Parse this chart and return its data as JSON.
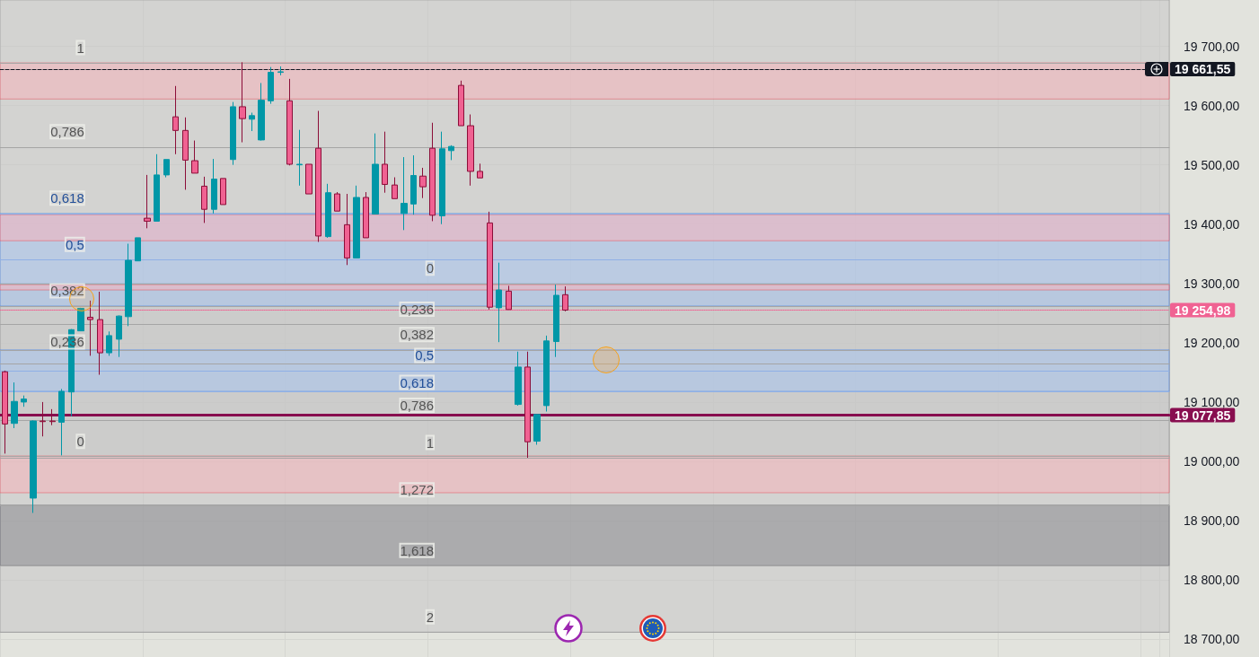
{
  "chart_data": {
    "type": "candlestick",
    "categories": [
      null,
      null,
      null,
      null,
      null,
      null,
      null,
      null,
      null,
      null,
      null,
      null,
      null,
      null,
      null,
      null,
      null,
      null,
      null,
      null,
      null,
      null,
      null,
      null,
      null,
      null,
      null,
      null,
      null,
      null,
      null,
      null,
      null,
      null,
      null,
      null,
      null,
      null,
      null,
      null,
      null,
      null,
      null,
      null,
      null,
      null,
      null,
      null,
      null,
      null,
      null,
      null,
      null,
      null,
      null,
      null,
      null,
      null,
      null,
      null,
      null,
      null,
      null,
      null,
      null,
      null,
      null,
      null,
      null,
      null,
      null,
      null,
      null,
      null,
      null,
      null,
      null,
      null,
      null,
      null,
      null,
      null,
      null,
      null,
      null,
      null,
      null,
      null,
      null,
      null,
      null,
      null,
      null,
      null,
      null,
      null,
      null,
      null,
      null,
      null,
      null,
      null,
      null,
      null,
      null,
      null,
      null,
      null,
      null,
      null,
      null,
      null,
      null,
      null,
      null,
      null,
      null,
      null,
      null,
      null,
      null,
      null,
      null
    ],
    "ohlc": [
      [
        19151,
        19153,
        19013,
        19063
      ],
      [
        19064,
        19133,
        19056,
        19101
      ],
      [
        19100,
        19111,
        19092,
        19105
      ],
      [
        18938,
        19069,
        18913,
        19068
      ],
      [
        19068,
        19100,
        19042,
        19067
      ],
      [
        19068,
        19088,
        19061,
        19067
      ],
      [
        19066,
        19122,
        19010,
        19118
      ],
      [
        19117,
        19223,
        19076,
        19222
      ],
      [
        19220,
        19259,
        19220,
        19258
      ],
      [
        19243,
        19271,
        19178,
        19239
      ],
      [
        19239,
        19286,
        19146,
        19183
      ],
      [
        19183,
        19219,
        19178,
        19212
      ],
      [
        19206,
        19246,
        19176,
        19245
      ],
      [
        19244,
        19367,
        19228,
        19339
      ],
      [
        19338,
        19377,
        19338,
        19377
      ],
      [
        19410,
        19483,
        19393,
        19405
      ],
      [
        19405,
        19518,
        19405,
        19483
      ],
      [
        19483,
        19509,
        19479,
        19509
      ],
      [
        19581,
        19633,
        19518,
        19558
      ],
      [
        19558,
        19580,
        19458,
        19508
      ],
      [
        19507,
        19541,
        19486,
        19486
      ],
      [
        19464,
        19480,
        19402,
        19425
      ],
      [
        19425,
        19510,
        19418,
        19476
      ],
      [
        19477,
        19477,
        19433,
        19433
      ],
      [
        19509,
        19606,
        19500,
        19598
      ],
      [
        19598,
        19673,
        19538,
        19578
      ],
      [
        19577,
        19588,
        19557,
        19583
      ],
      [
        19542,
        19638,
        19541,
        19609
      ],
      [
        19608,
        19665,
        19603,
        19656
      ],
      [
        19656,
        19666,
        19651,
        19657
      ],
      [
        19608,
        19645,
        19499,
        19501
      ],
      [
        19500,
        19559,
        19465,
        19501
      ],
      [
        19501,
        19501,
        19451,
        19451
      ],
      [
        19528,
        19591,
        19370,
        19380
      ],
      [
        19379,
        19468,
        19377,
        19453
      ],
      [
        19451,
        19454,
        19422,
        19422
      ],
      [
        19399,
        19451,
        19331,
        19343
      ],
      [
        19343,
        19465,
        19343,
        19445
      ],
      [
        19445,
        19454,
        19377,
        19377
      ],
      [
        19417,
        19553,
        19417,
        19501
      ],
      [
        19501,
        19556,
        19453,
        19467
      ],
      [
        19466,
        19479,
        19443,
        19443
      ],
      [
        19418,
        19513,
        19390,
        19435
      ],
      [
        19434,
        19516,
        19416,
        19482
      ],
      [
        19481,
        19495,
        19444,
        19463
      ],
      [
        19528,
        19571,
        19405,
        19415
      ],
      [
        19414,
        19556,
        19400,
        19527
      ],
      [
        19524,
        19533,
        19508,
        19531
      ],
      [
        19634,
        19642,
        19566,
        19566
      ],
      [
        19566,
        19585,
        19465,
        19489
      ],
      [
        19489,
        19502,
        19478,
        19478
      ],
      [
        19402,
        19421,
        19256,
        19260
      ],
      [
        19259,
        19335,
        19201,
        19289
      ],
      [
        19287,
        19296,
        19256,
        19256
      ],
      [
        19096,
        19185,
        19094,
        19159
      ],
      [
        19159,
        19185,
        19006,
        19033
      ],
      [
        19034,
        19079,
        19028,
        19079
      ],
      [
        19094,
        19212,
        19084,
        19203
      ],
      [
        19202,
        19298,
        19176,
        19280
      ],
      [
        19281,
        19295,
        19253,
        19255
      ],
      null,
      null,
      null,
      null,
      null,
      null,
      null,
      null,
      null,
      null,
      null,
      null,
      null,
      null,
      null,
      null,
      null,
      null,
      null,
      null,
      null,
      null,
      null,
      null,
      null,
      null,
      null,
      null,
      null,
      null,
      null,
      null,
      null,
      null,
      null,
      null,
      null,
      null,
      null,
      null,
      null,
      null,
      null,
      null,
      null,
      null,
      null,
      null,
      null,
      null,
      null,
      null,
      null,
      null,
      null,
      null,
      null,
      null,
      null,
      null,
      null,
      null,
      null
    ],
    "colors": [
      "#f06292",
      "#0097a7",
      "#0097a7",
      "#0097a7",
      "#f06292",
      "#f06292",
      "#0097a7",
      "#0097a7",
      "#0097a7",
      "#f06292",
      "#f06292",
      "#0097a7",
      "#0097a7",
      "#0097a7",
      "#0097a7",
      "#f06292",
      "#0097a7",
      "#0097a7",
      "#f06292",
      "#f06292",
      "#f06292",
      "#f06292",
      "#0097a7",
      "#f06292",
      "#0097a7",
      "#f06292",
      "#0097a7",
      "#0097a7",
      "#0097a7",
      "#0097a7",
      "#f06292",
      "#0097a7",
      "#f06292",
      "#f06292",
      "#0097a7",
      "#f06292",
      "#f06292",
      "#0097a7",
      "#f06292",
      "#0097a7",
      "#f06292",
      "#f06292",
      "#0097a7",
      "#0097a7",
      "#f06292",
      "#f06292",
      "#0097a7",
      "#0097a7",
      "#f06292",
      "#f06292",
      "#f06292",
      "#f06292",
      "#0097a7",
      "#f06292",
      "#0097a7",
      "#f06292",
      "#0097a7",
      "#0097a7",
      "#0097a7",
      "#f06292",
      null,
      null,
      null,
      null,
      null,
      null,
      null,
      null,
      null,
      null,
      null,
      null,
      null,
      null,
      null,
      null,
      null,
      null,
      null,
      null,
      null,
      null,
      null,
      null,
      null,
      null,
      null,
      null,
      null,
      null,
      null,
      null,
      null,
      null,
      null,
      null,
      null,
      null,
      null,
      null,
      null,
      null,
      null,
      null,
      null,
      null,
      null,
      null,
      null,
      null,
      null,
      null,
      null,
      null,
      null,
      null,
      null,
      null,
      null,
      null,
      null,
      null,
      null
    ],
    "ylim": [
      18670,
      19778
    ],
    "yticks": [
      {
        "value": 18700,
        "label": "18 700,00"
      },
      {
        "value": 18800,
        "label": "18 800,00"
      },
      {
        "value": 18900,
        "label": "18 900,00"
      },
      {
        "value": 19000,
        "label": "19 000,00"
      },
      {
        "value": 19100,
        "label": "19 100,00"
      },
      {
        "value": 19200,
        "label": "19 200,00"
      },
      {
        "value": 19300,
        "label": "19 300,00"
      },
      {
        "value": 19400,
        "label": "19 400,00"
      },
      {
        "value": 19500,
        "label": "19 500,00"
      },
      {
        "value": 19600,
        "label": "19 600,00"
      },
      {
        "value": 19700,
        "label": "19 700,00"
      }
    ],
    "grid": true,
    "tick_labels": "y",
    "bands": [
      {
        "axis": "y",
        "from": 19008,
        "to": 19778,
        "color": "#c6c6c6"
      },
      {
        "axis": "y",
        "from": 18712,
        "to": 19300,
        "color": "#c6c6c6"
      },
      {
        "axis": "y",
        "from": 18824,
        "to": 18926,
        "color": "#8a8a90"
      },
      {
        "axis": "y",
        "from": 19262,
        "to": 19418,
        "color": "#a8c4f0"
      },
      {
        "axis": "y",
        "from": 19118,
        "to": 19188,
        "color": "#a8c4f0"
      },
      {
        "axis": "y",
        "from": 19611,
        "to": 19672,
        "color": "#f5b5bb"
      },
      {
        "axis": "y",
        "from": 19372,
        "to": 19416,
        "color": "#f5b5bb"
      },
      {
        "axis": "y",
        "from": 18947,
        "to": 19009,
        "color": "#f5b5bb"
      },
      {
        "axis": "y",
        "from": 19289,
        "to": 19298,
        "color": "#f5b5bb"
      }
    ],
    "ref_lines": [
      {
        "axis": "y",
        "value": 19661.55,
        "label": "19 661,55",
        "color": "#131722",
        "line_style": "dashed"
      },
      {
        "axis": "y",
        "value": 19254.98,
        "label": "19 254,98",
        "color": "#f06292",
        "line_style": "dotted"
      },
      {
        "axis": "y",
        "value": 19077.85,
        "label": "19 077,85",
        "color": "#880e4f",
        "line_style": "solid"
      },
      {
        "axis": "y",
        "value": 19672,
        "color": "#a5a5a5"
      },
      {
        "axis": "y",
        "value": 19530,
        "color": "#a5a5a5"
      },
      {
        "axis": "y",
        "value": 19418,
        "color": "#8fb0e6"
      },
      {
        "axis": "y",
        "value": 19340,
        "color": "#8fb0e6"
      },
      {
        "axis": "y",
        "value": 19262,
        "color": "#a5a5a5"
      },
      {
        "axis": "y",
        "value": 19165,
        "color": "#a5a5a5"
      },
      {
        "axis": "y",
        "value": 19008,
        "color": "#a5a5a5"
      },
      {
        "axis": "y",
        "value": 19300,
        "color": "#a5a5a5"
      },
      {
        "axis": "y",
        "value": 19231,
        "color": "#a5a5a5"
      },
      {
        "axis": "y",
        "value": 19188,
        "color": "#a5a5a5"
      },
      {
        "axis": "y",
        "value": 19153,
        "color": "#8fb0e6"
      },
      {
        "axis": "y",
        "value": 19118,
        "color": "#8fb0e6"
      },
      {
        "axis": "y",
        "value": 19069,
        "color": "#a5a5a5"
      },
      {
        "axis": "y",
        "value": 19006,
        "color": "#a5a5a5"
      },
      {
        "axis": "y",
        "value": 18926,
        "color": "#a5a5a5"
      },
      {
        "axis": "y",
        "value": 18824,
        "color": "#a5a5a5"
      },
      {
        "axis": "y",
        "value": 18712,
        "color": "#a5a5a5"
      }
    ],
    "annotations": [
      {
        "text": "1",
        "y": 19672
      },
      {
        "text": "0,786",
        "y": 19530
      },
      {
        "text": "0,618",
        "y": 19418
      },
      {
        "text": "0,5",
        "y": 19340
      },
      {
        "text": "0,382",
        "y": 19262
      },
      {
        "text": "0,236",
        "y": 19165
      },
      {
        "text": "0",
        "y": 19008
      },
      {
        "text": "1",
        "y": 19006
      },
      {
        "text": "0",
        "y": 19300
      },
      {
        "text": "0,236",
        "y": 19231
      },
      {
        "text": "0,382",
        "y": 19188
      },
      {
        "text": "0,5",
        "y": 19153
      },
      {
        "text": "0,618",
        "y": 19118
      },
      {
        "text": "0,786",
        "y": 19069
      },
      {
        "text": "1,272",
        "y": 18926
      },
      {
        "text": "1,618",
        "y": 18824
      },
      {
        "text": "2",
        "y": 18712
      }
    ]
  }
}
